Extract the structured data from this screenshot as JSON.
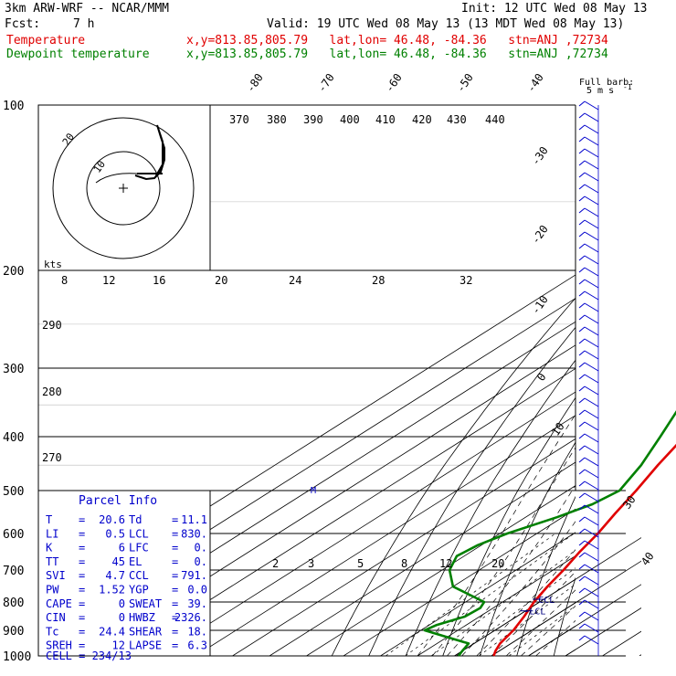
{
  "header": {
    "model": "3km ARW-WRF -- NCAR/MMM",
    "init": "Init: 12 UTC Wed 08 May 13",
    "fcst_label": "Fcst:",
    "fcst_value": "7 h",
    "valid": "Valid: 19 UTC Wed 08 May 13 (13 MDT Wed 08 May 13)",
    "temp_label": "Temperature",
    "temp_info": "x,y=813.85,805.79   lat,lon= 46.48, -84.36   stn=ANJ ,72734",
    "dew_label": "Dewpoint temperature",
    "dew_info": "x,y=813.85,805.79   lat,lon= 46.48, -84.36   stn=ANJ ,72734"
  },
  "barb_legend": {
    "line1": "Full barb:",
    "line2": "5 m s",
    "exp": "-1"
  },
  "hodograph": {
    "label": "kts",
    "ring_labels": [
      "10",
      "20"
    ],
    "speed_ticks": [
      "8",
      "12",
      "16",
      "20",
      "24",
      "28",
      "32"
    ]
  },
  "parcel_info": {
    "title": "Parcel Info",
    "rows": [
      {
        "l1": "T",
        "v1": "20.6",
        "l2": "Td",
        "v2": "11.1"
      },
      {
        "l1": "LI",
        "v1": "0.5",
        "l2": "LCL",
        "v2": "830."
      },
      {
        "l1": "K",
        "v1": "6",
        "l2": "LFC",
        "v2": "0."
      },
      {
        "l1": "TT",
        "v1": "45",
        "l2": "EL",
        "v2": "0."
      },
      {
        "l1": "SVI",
        "v1": "4.7",
        "l2": "CCL",
        "v2": "791."
      },
      {
        "l1": "PW",
        "v1": "1.52",
        "l2": "YGP",
        "v2": "0.0"
      },
      {
        "l1": "CAPE",
        "v1": "0",
        "l2": "SWEAT",
        "v2": "39."
      },
      {
        "l1": "CIN",
        "v1": "0",
        "l2": "HWBZ",
        "v2": "2326."
      },
      {
        "l1": "Tc",
        "v1": "24.4",
        "l2": "SHEAR",
        "v2": "18."
      },
      {
        "l1": "SREH",
        "v1": "12",
        "l2": "LAPSE",
        "v2": "6.3"
      }
    ],
    "cell": "CELL = 234/13"
  },
  "chart_data": {
    "type": "line",
    "pressure_levels": [
      "100",
      "200",
      "300",
      "400",
      "500",
      "600",
      "700",
      "800",
      "900",
      "1000"
    ],
    "isotherm_labels": [
      "-80",
      "-70",
      "-60",
      "-50",
      "-40",
      "-30",
      "-20",
      "-10",
      "0",
      "10",
      "20",
      "30",
      "40"
    ],
    "theta_labels": [
      "370",
      "380",
      "390",
      "400",
      "410",
      "420",
      "430",
      "440"
    ],
    "dry_adiabat_labels": [
      "290",
      "280",
      "270"
    ],
    "mixing_ratio_labels": [
      "2",
      "3",
      "5",
      "8",
      "12",
      "20"
    ],
    "markers": {
      "ccl": "CCL",
      "lcl": "LCL",
      "m": "M"
    },
    "series": [
      {
        "name": "Temperature",
        "color": "#e00000",
        "points": [
          [
            1000,
            20.6
          ],
          [
            980,
            19.0
          ],
          [
            950,
            17.0
          ],
          [
            900,
            15.0
          ],
          [
            850,
            12.0
          ],
          [
            800,
            8.5
          ],
          [
            750,
            5.5
          ],
          [
            700,
            2.8
          ],
          [
            650,
            -0.5
          ],
          [
            600,
            -3.5
          ],
          [
            550,
            -7.5
          ],
          [
            500,
            -11.5
          ],
          [
            450,
            -16.5
          ],
          [
            400,
            -21.5
          ],
          [
            350,
            -28.0
          ],
          [
            300,
            -35.0
          ],
          [
            250,
            -43.0
          ],
          [
            220,
            -49.0
          ],
          [
            205,
            -53.5
          ],
          [
            200,
            -55.0
          ],
          [
            185,
            -55.5
          ],
          [
            165,
            -54.5
          ],
          [
            150,
            -53.0
          ],
          [
            135,
            -51.5
          ],
          [
            120,
            -50.0
          ],
          [
            110,
            -49.5
          ],
          [
            100,
            -49.5
          ]
        ]
      },
      {
        "name": "Dewpoint temperature",
        "color": "#008000",
        "points": [
          [
            1000,
            11.1
          ],
          [
            980,
            10.0
          ],
          [
            950,
            8.5
          ],
          [
            920,
            -2.0
          ],
          [
            900,
            -9.0
          ],
          [
            880,
            -8.0
          ],
          [
            850,
            -4.0
          ],
          [
            820,
            -3.5
          ],
          [
            800,
            -5.0
          ],
          [
            750,
            -20.0
          ],
          [
            700,
            -28.0
          ],
          [
            660,
            -32.0
          ],
          [
            630,
            -31.0
          ],
          [
            600,
            -28.0
          ],
          [
            560,
            -21.5
          ],
          [
            530,
            -17.5
          ],
          [
            500,
            -16.0
          ],
          [
            450,
            -21.0
          ],
          [
            400,
            -28.0
          ],
          [
            350,
            -36.0
          ],
          [
            300,
            -43.0
          ],
          [
            250,
            -53.5
          ],
          [
            210,
            -64.0
          ],
          [
            200,
            -64.0
          ],
          [
            185,
            -63.0
          ],
          [
            170,
            -62.5
          ],
          [
            155,
            -62.0
          ],
          [
            140,
            -63.0
          ],
          [
            125,
            -64.5
          ],
          [
            110,
            -66.0
          ],
          [
            100,
            -69.0
          ]
        ]
      }
    ]
  }
}
